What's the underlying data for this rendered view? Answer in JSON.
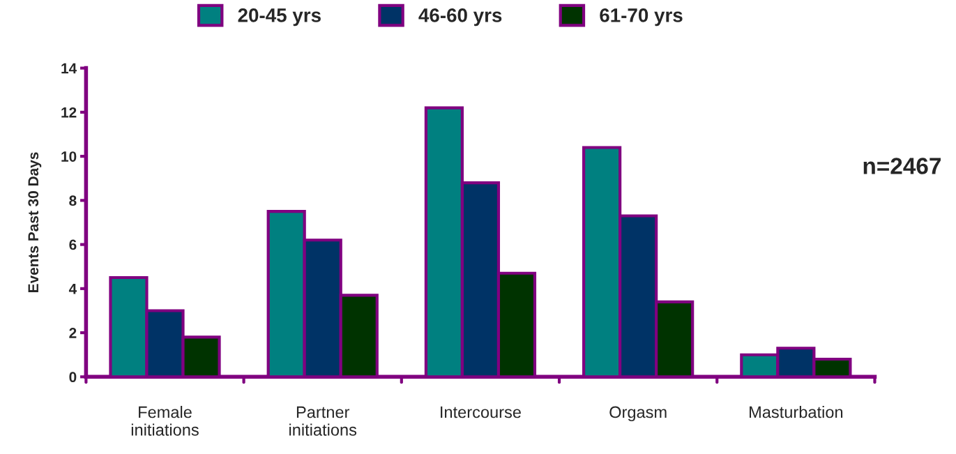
{
  "chart_data": {
    "type": "bar",
    "categories": [
      "Female\ninitiations",
      "Partner\ninitiations",
      "Intercourse",
      "Orgasm",
      "Masturbation"
    ],
    "series": [
      {
        "name": "20-45 yrs",
        "color": "#008080",
        "values": [
          4.5,
          7.5,
          12.2,
          10.4,
          1.0
        ]
      },
      {
        "name": "46-60 yrs",
        "color": "#003366",
        "values": [
          3.0,
          6.2,
          8.8,
          7.3,
          1.3
        ]
      },
      {
        "name": "61-70 yrs",
        "color": "#003300",
        "values": [
          1.8,
          3.7,
          4.7,
          3.4,
          0.8
        ]
      }
    ],
    "ylabel": "Events Past 30 Days",
    "ylim": [
      0,
      14
    ],
    "yticks": [
      0,
      2,
      4,
      6,
      8,
      10,
      12,
      14
    ],
    "annotations": [
      "n=2467"
    ],
    "legend": "top",
    "grid": false
  }
}
